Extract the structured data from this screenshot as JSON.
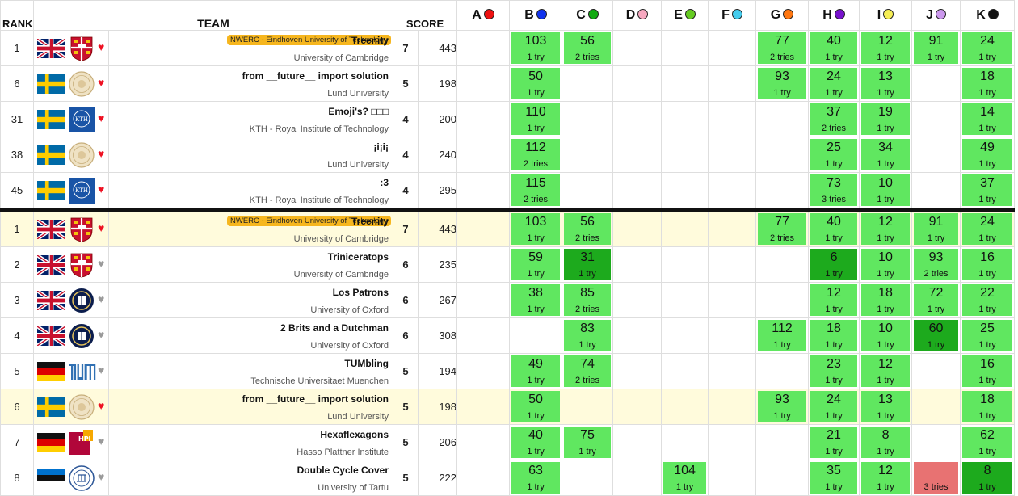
{
  "headers": {
    "rank": "RANK",
    "team": "TEAM",
    "score": "SCORE"
  },
  "problems": [
    {
      "letter": "A",
      "color": "#ee1111"
    },
    {
      "letter": "B",
      "color": "#1133ee"
    },
    {
      "letter": "C",
      "color": "#11aa11"
    },
    {
      "letter": "D",
      "color": "#f7a8c0"
    },
    {
      "letter": "E",
      "color": "#66cc22"
    },
    {
      "letter": "F",
      "color": "#44ccee"
    },
    {
      "letter": "G",
      "color": "#ff7711"
    },
    {
      "letter": "H",
      "color": "#7711cc"
    },
    {
      "letter": "I",
      "color": "#f6ee55"
    },
    {
      "letter": "J",
      "color": "#cc99ee"
    },
    {
      "letter": "K",
      "color": "#111111"
    }
  ],
  "favorites": [
    {
      "rank": "1",
      "flag": "uk",
      "crest": "cambridge",
      "heart": "red",
      "badge": "NWERC - Eindhoven University of Technology",
      "name": "Treenity",
      "org": "University of Cambridge",
      "solved": "7",
      "penalty": "443",
      "cells": [
        null,
        {
          "time": "103",
          "tries": "1 try",
          "status": "ok"
        },
        {
          "time": "56",
          "tries": "2 tries",
          "status": "ok"
        },
        null,
        null,
        null,
        {
          "time": "77",
          "tries": "2 tries",
          "status": "ok"
        },
        {
          "time": "40",
          "tries": "1 try",
          "status": "ok"
        },
        {
          "time": "12",
          "tries": "1 try",
          "status": "ok"
        },
        {
          "time": "91",
          "tries": "1 try",
          "status": "ok"
        },
        {
          "time": "24",
          "tries": "1 try",
          "status": "ok"
        }
      ]
    },
    {
      "rank": "6",
      "flag": "se",
      "crest": "lund",
      "heart": "red",
      "badge": "",
      "name": "from __future__ import solution",
      "org": "Lund University",
      "solved": "5",
      "penalty": "198",
      "cells": [
        null,
        {
          "time": "50",
          "tries": "1 try",
          "status": "ok"
        },
        null,
        null,
        null,
        null,
        {
          "time": "93",
          "tries": "1 try",
          "status": "ok"
        },
        {
          "time": "24",
          "tries": "1 try",
          "status": "ok"
        },
        {
          "time": "13",
          "tries": "1 try",
          "status": "ok"
        },
        null,
        {
          "time": "18",
          "tries": "1 try",
          "status": "ok"
        }
      ]
    },
    {
      "rank": "31",
      "flag": "se",
      "crest": "kth",
      "heart": "red",
      "badge": "",
      "name": "Emoji's? □□□",
      "org": "KTH - Royal Institute of Technology",
      "solved": "4",
      "penalty": "200",
      "cells": [
        null,
        {
          "time": "110",
          "tries": "1 try",
          "status": "ok"
        },
        null,
        null,
        null,
        null,
        null,
        {
          "time": "37",
          "tries": "2 tries",
          "status": "ok"
        },
        {
          "time": "19",
          "tries": "1 try",
          "status": "ok"
        },
        null,
        {
          "time": "14",
          "tries": "1 try",
          "status": "ok"
        }
      ]
    },
    {
      "rank": "38",
      "flag": "se",
      "crest": "lund",
      "heart": "red",
      "badge": "",
      "name": "¡i¡i¡",
      "org": "Lund University",
      "solved": "4",
      "penalty": "240",
      "cells": [
        null,
        {
          "time": "112",
          "tries": "2 tries",
          "status": "ok"
        },
        null,
        null,
        null,
        null,
        null,
        {
          "time": "25",
          "tries": "1 try",
          "status": "ok"
        },
        {
          "time": "34",
          "tries": "1 try",
          "status": "ok"
        },
        null,
        {
          "time": "49",
          "tries": "1 try",
          "status": "ok"
        }
      ]
    },
    {
      "rank": "45",
      "flag": "se",
      "crest": "kth",
      "heart": "red",
      "badge": "",
      "name": ":3",
      "org": "KTH - Royal Institute of Technology",
      "solved": "4",
      "penalty": "295",
      "cells": [
        null,
        {
          "time": "115",
          "tries": "2 tries",
          "status": "ok"
        },
        null,
        null,
        null,
        null,
        null,
        {
          "time": "73",
          "tries": "3 tries",
          "status": "ok"
        },
        {
          "time": "10",
          "tries": "1 try",
          "status": "ok"
        },
        null,
        {
          "time": "37",
          "tries": "1 try",
          "status": "ok"
        }
      ]
    }
  ],
  "standings": [
    {
      "rank": "1",
      "flag": "uk",
      "crest": "cambridge",
      "heart": "red",
      "highlight": true,
      "badge": "NWERC - Eindhoven University of Technology",
      "name": "Treenity",
      "org": "University of Cambridge",
      "solved": "7",
      "penalty": "443",
      "cells": [
        null,
        {
          "time": "103",
          "tries": "1 try",
          "status": "ok"
        },
        {
          "time": "56",
          "tries": "2 tries",
          "status": "ok"
        },
        null,
        null,
        null,
        {
          "time": "77",
          "tries": "2 tries",
          "status": "ok"
        },
        {
          "time": "40",
          "tries": "1 try",
          "status": "ok"
        },
        {
          "time": "12",
          "tries": "1 try",
          "status": "ok"
        },
        {
          "time": "91",
          "tries": "1 try",
          "status": "ok"
        },
        {
          "time": "24",
          "tries": "1 try",
          "status": "ok"
        }
      ]
    },
    {
      "rank": "2",
      "flag": "uk",
      "crest": "cambridge",
      "heart": "grey",
      "highlight": false,
      "badge": "",
      "name": "Triniceratops",
      "org": "University of Cambridge",
      "solved": "6",
      "penalty": "235",
      "cells": [
        null,
        {
          "time": "59",
          "tries": "1 try",
          "status": "ok"
        },
        {
          "time": "31",
          "tries": "1 try",
          "status": "first"
        },
        null,
        null,
        null,
        null,
        {
          "time": "6",
          "tries": "1 try",
          "status": "first"
        },
        {
          "time": "10",
          "tries": "1 try",
          "status": "ok"
        },
        {
          "time": "93",
          "tries": "2 tries",
          "status": "ok"
        },
        {
          "time": "16",
          "tries": "1 try",
          "status": "ok"
        }
      ]
    },
    {
      "rank": "3",
      "flag": "uk",
      "crest": "oxford",
      "heart": "grey",
      "highlight": false,
      "badge": "",
      "name": "Los Patrons",
      "org": "University of Oxford",
      "solved": "6",
      "penalty": "267",
      "cells": [
        null,
        {
          "time": "38",
          "tries": "1 try",
          "status": "ok"
        },
        {
          "time": "85",
          "tries": "2 tries",
          "status": "ok"
        },
        null,
        null,
        null,
        null,
        {
          "time": "12",
          "tries": "1 try",
          "status": "ok"
        },
        {
          "time": "18",
          "tries": "1 try",
          "status": "ok"
        },
        {
          "time": "72",
          "tries": "1 try",
          "status": "ok"
        },
        {
          "time": "22",
          "tries": "1 try",
          "status": "ok"
        }
      ]
    },
    {
      "rank": "4",
      "flag": "uk",
      "crest": "oxford",
      "heart": "grey",
      "highlight": false,
      "badge": "",
      "name": "2 Brits and a Dutchman",
      "org": "University of Oxford",
      "solved": "6",
      "penalty": "308",
      "cells": [
        null,
        null,
        {
          "time": "83",
          "tries": "1 try",
          "status": "ok"
        },
        null,
        null,
        null,
        {
          "time": "112",
          "tries": "1 try",
          "status": "ok"
        },
        {
          "time": "18",
          "tries": "1 try",
          "status": "ok"
        },
        {
          "time": "10",
          "tries": "1 try",
          "status": "ok"
        },
        {
          "time": "60",
          "tries": "1 try",
          "status": "first"
        },
        {
          "time": "25",
          "tries": "1 try",
          "status": "ok"
        }
      ]
    },
    {
      "rank": "5",
      "flag": "de",
      "crest": "tum",
      "heart": "grey",
      "highlight": false,
      "badge": "",
      "name": "TUMbling",
      "org": "Technische Universitaet Muenchen",
      "solved": "5",
      "penalty": "194",
      "cells": [
        null,
        {
          "time": "49",
          "tries": "1 try",
          "status": "ok"
        },
        {
          "time": "74",
          "tries": "2 tries",
          "status": "ok"
        },
        null,
        null,
        null,
        null,
        {
          "time": "23",
          "tries": "1 try",
          "status": "ok"
        },
        {
          "time": "12",
          "tries": "1 try",
          "status": "ok"
        },
        null,
        {
          "time": "16",
          "tries": "1 try",
          "status": "ok"
        }
      ]
    },
    {
      "rank": "6",
      "flag": "se",
      "crest": "lund",
      "heart": "red",
      "highlight": true,
      "badge": "",
      "name": "from __future__ import solution",
      "org": "Lund University",
      "solved": "5",
      "penalty": "198",
      "cells": [
        null,
        {
          "time": "50",
          "tries": "1 try",
          "status": "ok"
        },
        null,
        null,
        null,
        null,
        {
          "time": "93",
          "tries": "1 try",
          "status": "ok"
        },
        {
          "time": "24",
          "tries": "1 try",
          "status": "ok"
        },
        {
          "time": "13",
          "tries": "1 try",
          "status": "ok"
        },
        null,
        {
          "time": "18",
          "tries": "1 try",
          "status": "ok"
        }
      ]
    },
    {
      "rank": "7",
      "flag": "de",
      "crest": "hpi",
      "heart": "grey",
      "highlight": false,
      "badge": "",
      "name": "Hexaflexagons",
      "org": "Hasso Plattner Institute",
      "solved": "5",
      "penalty": "206",
      "cells": [
        null,
        {
          "time": "40",
          "tries": "1 try",
          "status": "ok"
        },
        {
          "time": "75",
          "tries": "1 try",
          "status": "ok"
        },
        null,
        null,
        null,
        null,
        {
          "time": "21",
          "tries": "1 try",
          "status": "ok"
        },
        {
          "time": "8",
          "tries": "1 try",
          "status": "ok"
        },
        null,
        {
          "time": "62",
          "tries": "1 try",
          "status": "ok"
        }
      ]
    },
    {
      "rank": "8",
      "flag": "ee",
      "crest": "tartu",
      "heart": "grey",
      "highlight": false,
      "badge": "",
      "name": "Double Cycle Cover",
      "org": "University of Tartu",
      "solved": "5",
      "penalty": "222",
      "cells": [
        null,
        {
          "time": "63",
          "tries": "1 try",
          "status": "ok"
        },
        null,
        null,
        {
          "time": "104",
          "tries": "1 try",
          "status": "ok"
        },
        null,
        null,
        {
          "time": "35",
          "tries": "1 try",
          "status": "ok"
        },
        {
          "time": "12",
          "tries": "1 try",
          "status": "ok"
        },
        {
          "time": "",
          "tries": "3 tries",
          "status": "fail"
        },
        {
          "time": "8",
          "tries": "1 try",
          "status": "first"
        }
      ]
    }
  ]
}
